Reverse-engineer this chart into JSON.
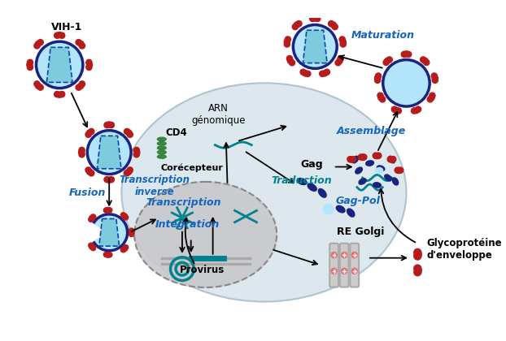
{
  "background_color": "#ffffff",
  "cell_color": "#dde8ee",
  "cell_border_color": "#b0c4d0",
  "nucleus_color": "#c8c8cc",
  "nucleus_border_color": "#888888",
  "virus_outer_color": "#1a237e",
  "virus_inner_color": "#b3e5fc",
  "virus_inner_color2": "#81d4fa",
  "spike_color": "#b71c1c",
  "capsid_color": "#7ecbde",
  "capsid_edge_color": "#0d47a1",
  "gag_color": "#1a237e",
  "teal_color": "#00838f",
  "teal_dark": "#006064",
  "receptor_color": "#2e7d32",
  "golgi_color": "#aaaaaa",
  "golgi_vesicle_color": "#e57373",
  "labels": {
    "VIH1": "VIH-1",
    "CD4": "CD4",
    "corecepteur": "Corécepteur",
    "fusion": "Fusion",
    "transcription_inverse": "Transcription\ninverse",
    "transcription": "Transcription",
    "integration": "Intégration",
    "provirus": "Provirus",
    "arn_genomique": "ARN\ngénomique",
    "traduction": "Traduction",
    "gag": "Gag",
    "gag_pol": "Gag-Pol",
    "re_golgi": "RE Golgi",
    "assemblage": "Assemblage",
    "maturation": "Maturation",
    "glycoproteine": "Glycoprotéine\nd'enveloppe"
  },
  "label_colors": {
    "fusion": "#1565c0",
    "transcription_inverse": "#1565c0",
    "transcription": "#1565c0",
    "integration": "#1565c0",
    "arn_genomique": "#000000",
    "traduction": "#00838f",
    "gag": "#000000",
    "gag_pol": "#1565c0",
    "assemblage": "#1565c0",
    "maturation": "#1565c0",
    "glycoproteine": "#000000",
    "re_golgi": "#000000",
    "CD4": "#000000",
    "corecepteur": "#000000",
    "provirus": "#000000",
    "VIH1": "#000000"
  }
}
